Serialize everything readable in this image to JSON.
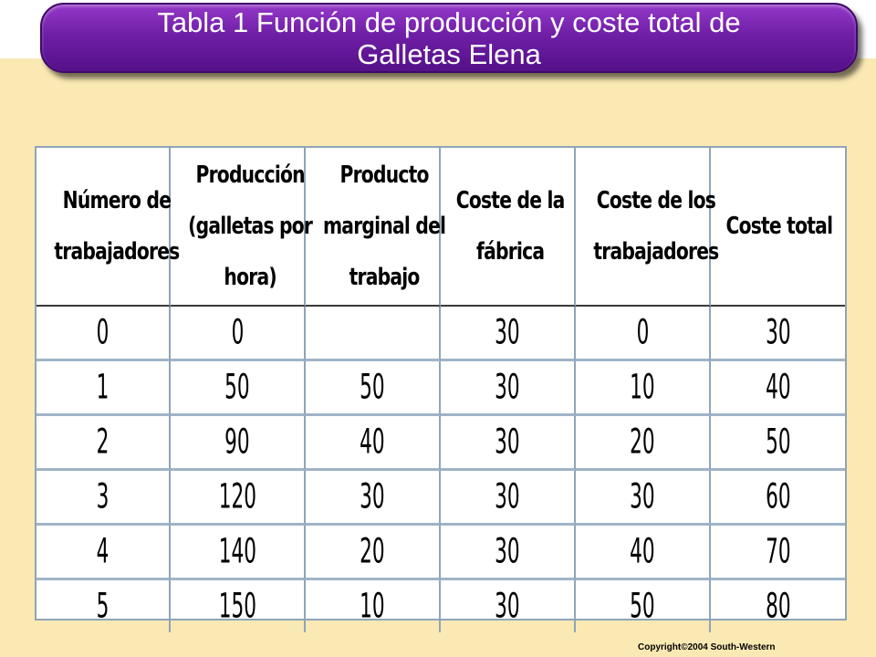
{
  "title": {
    "line1": "Tabla 1 Función de producción y coste total de",
    "line2": "Galletas Elena"
  },
  "table": {
    "columns": [
      [
        "Número de",
        "trabajadores"
      ],
      [
        "Producción",
        "(galletas por",
        "hora)"
      ],
      [
        "Producto",
        "marginal del",
        "trabajo"
      ],
      [
        "Coste de la",
        "fábrica"
      ],
      [
        "Coste de los",
        "trabajadores"
      ],
      [
        "Coste total"
      ]
    ],
    "rows": [
      [
        "0",
        "0",
        "",
        "30",
        "0",
        "30"
      ],
      [
        "1",
        "50",
        "50",
        "30",
        "10",
        "40"
      ],
      [
        "2",
        "90",
        "40",
        "30",
        "20",
        "50"
      ],
      [
        "3",
        "120",
        "30",
        "30",
        "30",
        "60"
      ],
      [
        "4",
        "140",
        "20",
        "30",
        "40",
        "70"
      ],
      [
        "5",
        "150",
        "10",
        "30",
        "50",
        "80"
      ]
    ]
  },
  "copyright": "Copyright©2004  South-Western",
  "colors": {
    "background": "#fbe9b4",
    "title_bar": "#6f1fa6",
    "title_text": "#ffffff",
    "grid_line": "#8fa4b8"
  }
}
